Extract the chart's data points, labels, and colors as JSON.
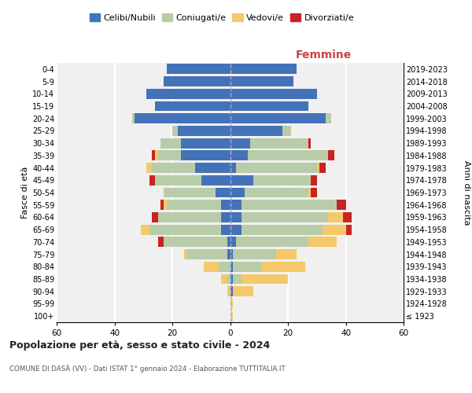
{
  "age_groups": [
    "100+",
    "95-99",
    "90-94",
    "85-89",
    "80-84",
    "75-79",
    "70-74",
    "65-69",
    "60-64",
    "55-59",
    "50-54",
    "45-49",
    "40-44",
    "35-39",
    "30-34",
    "25-29",
    "20-24",
    "15-19",
    "10-14",
    "5-9",
    "0-4"
  ],
  "birth_years": [
    "≤ 1923",
    "1924-1928",
    "1929-1933",
    "1934-1938",
    "1939-1943",
    "1944-1948",
    "1949-1953",
    "1954-1958",
    "1959-1963",
    "1964-1968",
    "1969-1973",
    "1974-1978",
    "1979-1983",
    "1984-1988",
    "1989-1993",
    "1994-1998",
    "1999-2003",
    "2004-2008",
    "2009-2013",
    "2014-2018",
    "2019-2023"
  ],
  "male_celibi": [
    0,
    0,
    0,
    0,
    0,
    1,
    1,
    3,
    3,
    3,
    5,
    10,
    12,
    17,
    17,
    18,
    33,
    26,
    29,
    23,
    22
  ],
  "male_coniugati": [
    0,
    0,
    0,
    1,
    4,
    14,
    22,
    25,
    22,
    19,
    18,
    16,
    15,
    8,
    7,
    2,
    1,
    0,
    0,
    0,
    0
  ],
  "male_vedovi": [
    0,
    0,
    1,
    2,
    5,
    1,
    0,
    3,
    0,
    1,
    0,
    0,
    2,
    1,
    0,
    0,
    0,
    0,
    0,
    0,
    0
  ],
  "male_divorziati": [
    0,
    0,
    0,
    0,
    0,
    0,
    2,
    0,
    2,
    1,
    0,
    2,
    0,
    1,
    0,
    0,
    0,
    0,
    0,
    0,
    0
  ],
  "female_celibi": [
    0,
    0,
    1,
    1,
    1,
    1,
    2,
    4,
    4,
    4,
    5,
    8,
    2,
    6,
    7,
    18,
    33,
    27,
    30,
    22,
    23
  ],
  "female_coniugati": [
    0,
    0,
    0,
    3,
    10,
    15,
    25,
    28,
    30,
    33,
    22,
    20,
    28,
    28,
    20,
    3,
    2,
    0,
    0,
    0,
    0
  ],
  "female_vedovi": [
    1,
    1,
    7,
    16,
    15,
    7,
    10,
    8,
    5,
    0,
    1,
    0,
    1,
    0,
    0,
    0,
    0,
    0,
    0,
    0,
    0
  ],
  "female_divorziati": [
    0,
    0,
    0,
    0,
    0,
    0,
    0,
    2,
    3,
    3,
    2,
    2,
    2,
    2,
    1,
    0,
    0,
    0,
    0,
    0,
    0
  ],
  "color_celibi": "#4472b8",
  "color_coniugati": "#b8ccaa",
  "color_vedovi": "#f5c96a",
  "color_divorziati": "#cc2222",
  "color_bg": "#f0f0f0",
  "color_grid": "#ffffff",
  "color_center_line": "#aaaacc",
  "xlabel_right": "Femmine",
  "ylabel_left": "Fasce di età",
  "ylabel_right": "Anni di nascita",
  "title": "Popolazione per età, sesso e stato civile - 2024",
  "subtitle": "COMUNE DI DASÀ (VV) - Dati ISTAT 1° gennaio 2024 - Elaborazione TUTTITALIA.IT",
  "xlim": 60,
  "legend_labels": [
    "Celibi/Nubili",
    "Coniugati/e",
    "Vedovi/e",
    "Divorziati/e"
  ]
}
